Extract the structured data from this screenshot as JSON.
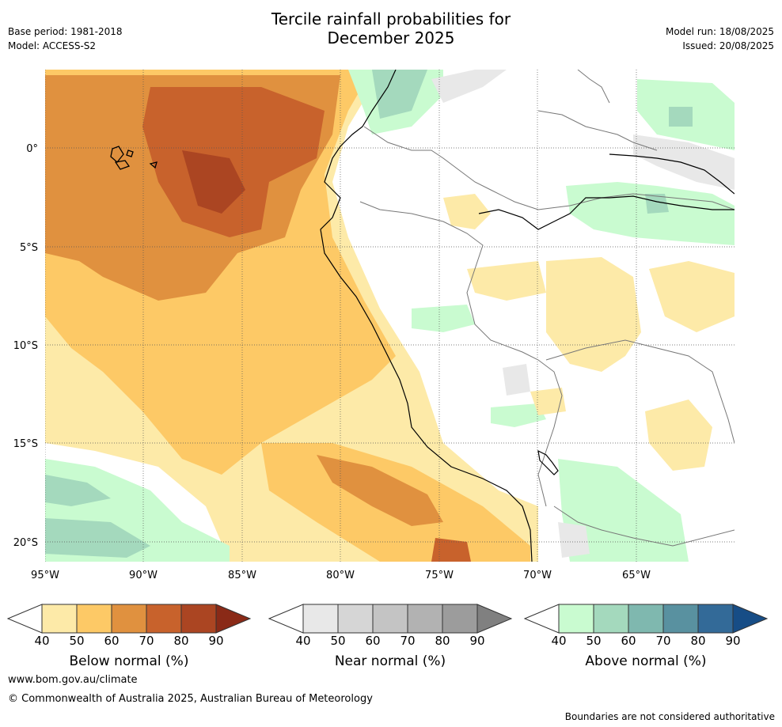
{
  "header": {
    "title_line1": "Tercile rainfall probabilities for",
    "title_line2": "December 2025",
    "base_period": "Base period: 1981-2018",
    "model": "Model: ACCESS-S2",
    "model_run": "Model run: 18/08/2025",
    "issued": "Issued: 20/08/2025"
  },
  "map": {
    "lat_labels": [
      "0°",
      "5°S",
      "10°S",
      "15°S",
      "20°S"
    ],
    "lon_labels": [
      "95°W",
      "90°W",
      "85°W",
      "80°W",
      "75°W",
      "70°W",
      "65°W"
    ]
  },
  "colorbars": [
    {
      "label": "Below normal (%)",
      "ticks": [
        "40",
        "50",
        "60",
        "70",
        "80",
        "90"
      ],
      "colors": [
        "#fdeaa8",
        "#fdc966",
        "#e0913f",
        "#c8622c",
        "#ab4522",
        "#8a2a17"
      ]
    },
    {
      "label": "Near normal (%)",
      "ticks": [
        "40",
        "50",
        "60",
        "70",
        "80",
        "90"
      ],
      "colors": [
        "#e8e8e8",
        "#d6d6d6",
        "#c4c4c4",
        "#b2b2b2",
        "#9c9c9c",
        "#808080"
      ]
    },
    {
      "label": "Above normal (%)",
      "ticks": [
        "40",
        "50",
        "60",
        "70",
        "80",
        "90"
      ],
      "colors": [
        "#c9fbd0",
        "#a4d9bd",
        "#7fb8af",
        "#5991a0",
        "#336a98",
        "#174d86"
      ]
    }
  ],
  "footer": {
    "website": "www.bom.gov.au/climate",
    "copyright": "© Commonwealth of Australia 2025, Australian Bureau of Meteorology",
    "disclaimer": "Boundaries are not considered authoritative"
  }
}
